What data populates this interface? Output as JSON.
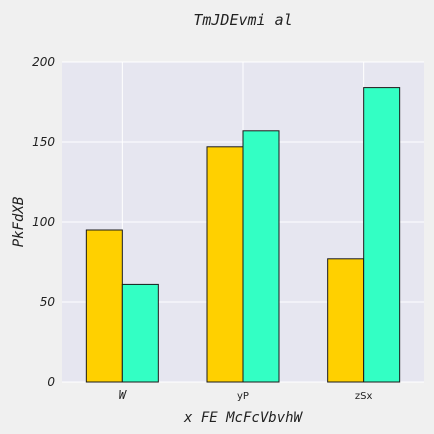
{
  "chart_data": {
    "type": "bar",
    "title": "TmJDEvmi al",
    "xlabel": "x FE McFcVbvhW",
    "ylabel": "PkFdXB",
    "categories": [
      "W",
      "yP",
      "zSx"
    ],
    "series": [
      {
        "values": [
          95,
          147,
          77
        ],
        "color": "#ffd000"
      },
      {
        "values": [
          61,
          157,
          184
        ],
        "color": "#33ffc4"
      }
    ],
    "ylim": [
      0,
      200
    ],
    "yticks": [
      0,
      50,
      100,
      150,
      200
    ],
    "grid": true,
    "legend": "none",
    "colors": {
      "plot_background": "#e6e6f0",
      "grid": "#ffffff",
      "bar_edge": "#1a1a1a"
    }
  }
}
